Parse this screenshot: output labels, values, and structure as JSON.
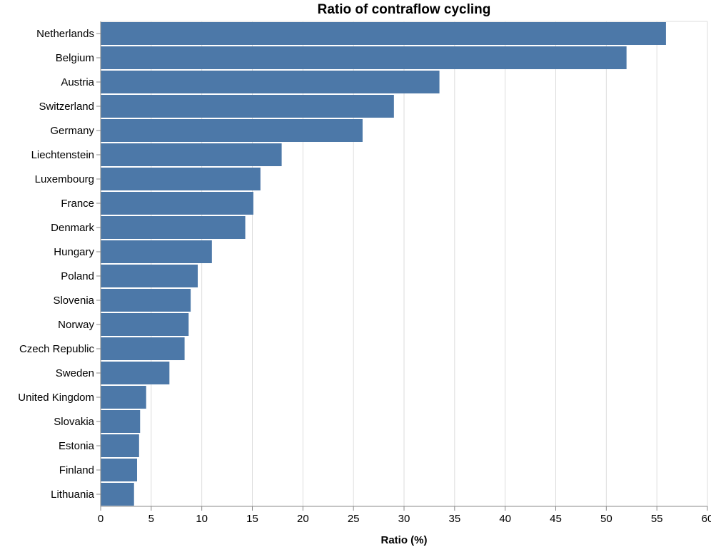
{
  "chart_data": {
    "type": "bar",
    "orientation": "horizontal",
    "title": "Ratio of contraflow cycling",
    "xlabel": "Ratio (%)",
    "ylabel": "",
    "xlim": [
      0,
      60
    ],
    "x_ticks": [
      0,
      5,
      10,
      15,
      20,
      25,
      30,
      35,
      40,
      45,
      50,
      55,
      60
    ],
    "grid": true,
    "legend": "none",
    "bar_color": "#4c78a8",
    "categories": [
      "Netherlands",
      "Belgium",
      "Austria",
      "Switzerland",
      "Germany",
      "Liechtenstein",
      "Luxembourg",
      "France",
      "Denmark",
      "Hungary",
      "Poland",
      "Slovenia",
      "Norway",
      "Czech Republic",
      "Sweden",
      "United Kingdom",
      "Slovakia",
      "Estonia",
      "Finland",
      "Lithuania"
    ],
    "values": [
      55.9,
      52.0,
      33.5,
      29.0,
      25.9,
      17.9,
      15.8,
      15.1,
      14.3,
      11.0,
      9.6,
      8.9,
      8.7,
      8.3,
      6.8,
      4.5,
      3.9,
      3.8,
      3.6,
      3.3
    ]
  }
}
